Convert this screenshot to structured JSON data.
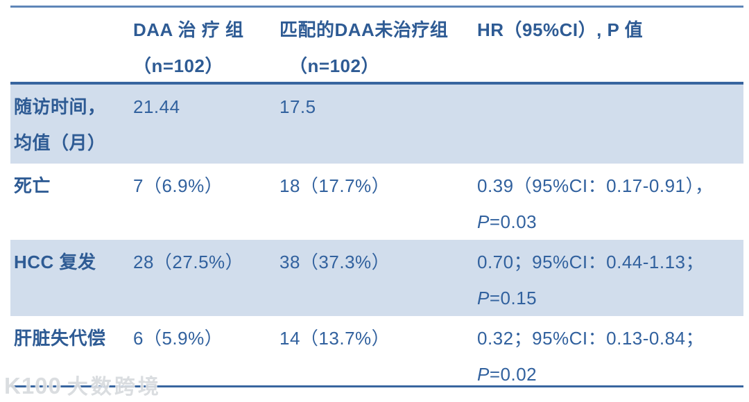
{
  "colors": {
    "header_text": "#2E5B94",
    "value_text": "#31619E",
    "banded_row_bg": "#D1DDEC",
    "top_rule": "#5E86B8",
    "strong_rule": "#38659F"
  },
  "table": {
    "header": {
      "col1": "",
      "col2_line1": "DAA 治 疗 组",
      "col2_line2": "（n=102）",
      "col3_line1": "匹配的DAA未治疗组",
      "col3_line2": "（n=102）",
      "col4": "HR（95%CI）, P 值"
    },
    "rows": [
      {
        "label_line1": "随访时间，",
        "label_line2": "均值（月）",
        "treated": "21.44",
        "untreated": "17.5",
        "hr_line1": "",
        "p_label": "",
        "p_value": ""
      },
      {
        "label_line1": "死亡",
        "label_line2": "",
        "treated": "7（6.9%）",
        "untreated": "18（17.7%）",
        "hr_line1": "0.39（95%CI：0.17-0.91），",
        "p_label": "P",
        "p_value": "=0.03"
      },
      {
        "label_line1": "HCC 复发",
        "label_line2": "",
        "treated": "28（27.5%）",
        "untreated": "38（37.3%）",
        "hr_line1": "0.70；95%CI：0.44-1.13；",
        "p_label": "P",
        "p_value": "=0.15"
      },
      {
        "label_line1": "肝脏失代偿",
        "label_line2": "",
        "treated": "6（5.9%）",
        "untreated": "14（13.7%）",
        "hr_line1": "0.32；95%CI：0.13-0.84；",
        "p_label": "P",
        "p_value": "=0.02"
      }
    ]
  },
  "watermark": {
    "logo": "K100",
    "text": "大数跨境"
  }
}
